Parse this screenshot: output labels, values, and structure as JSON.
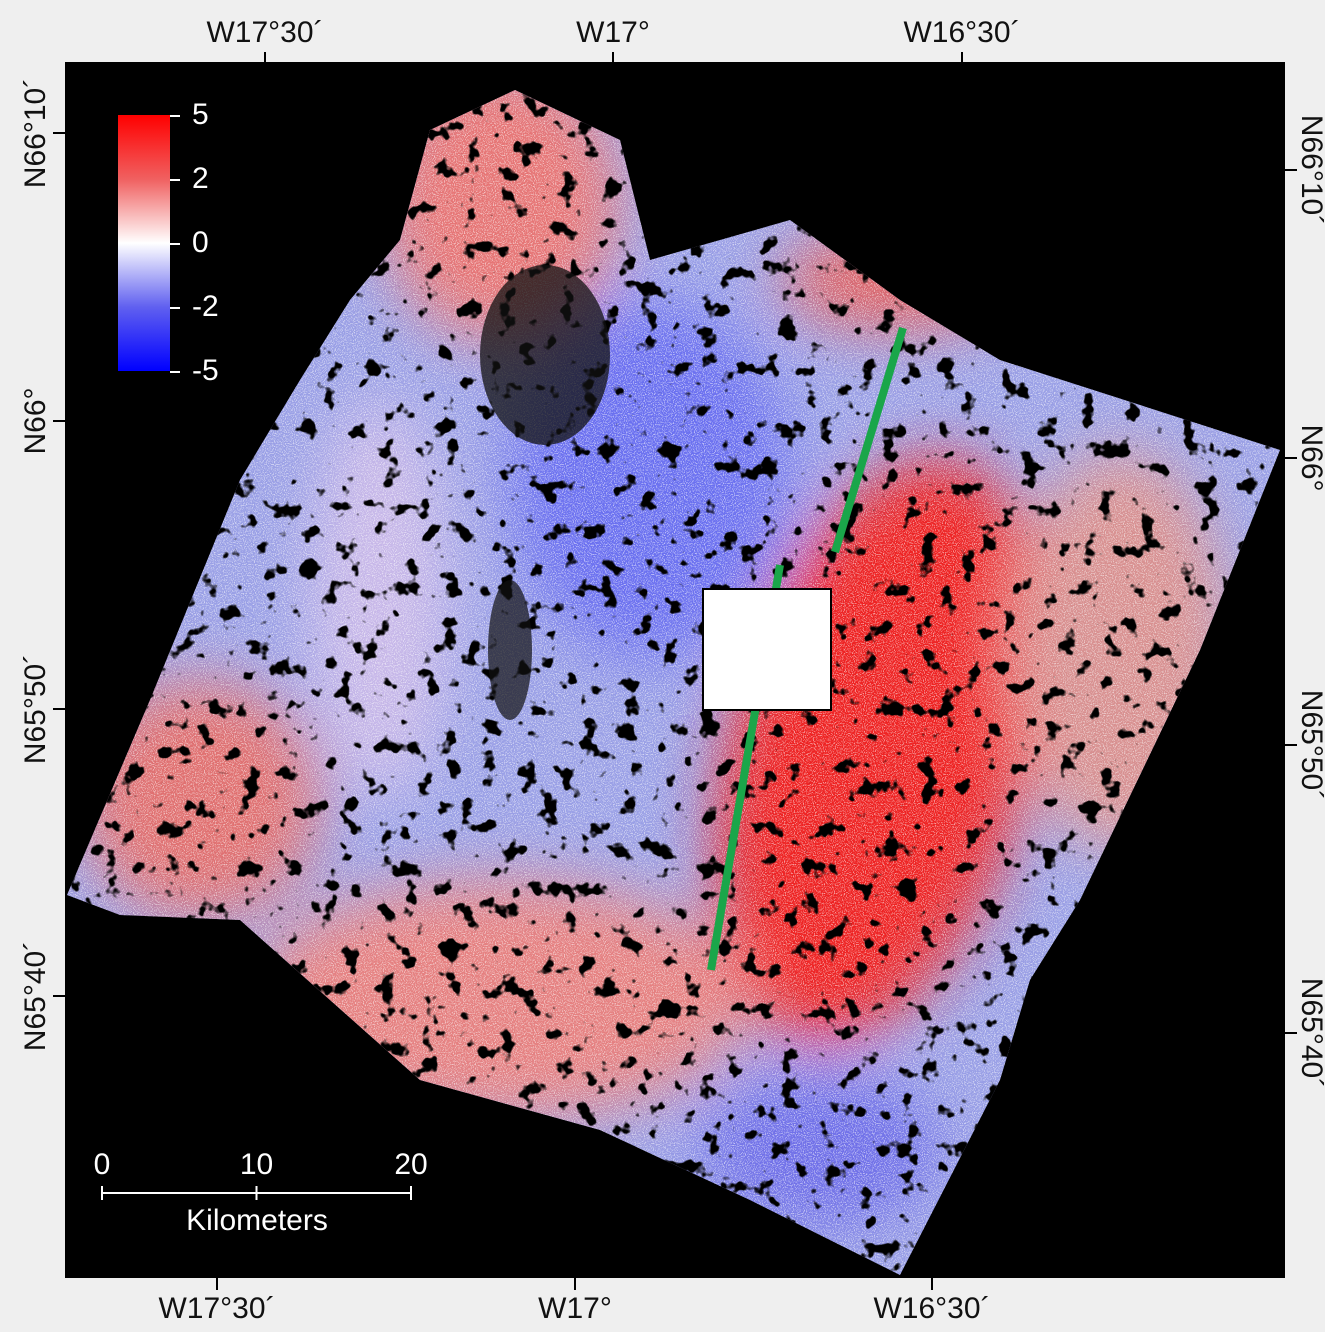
{
  "map": {
    "top_ticks": [
      "W17°30´",
      "W17°",
      "W16°30´"
    ],
    "bottom_ticks": [
      "W17°30´",
      "W17°",
      "W16°30´"
    ],
    "left_ticks": [
      "N66°10´",
      "N66°",
      "N65°50´",
      "N65°40´"
    ],
    "right_ticks": [
      "N66°10´",
      "N66°",
      "N65°50´",
      "N65°40´"
    ],
    "colorbar": {
      "ticks": [
        5,
        2,
        0,
        -2,
        -5
      ]
    },
    "scalebar": {
      "ticks": [
        0,
        10,
        20
      ],
      "unit": "Kilometers"
    }
  }
}
